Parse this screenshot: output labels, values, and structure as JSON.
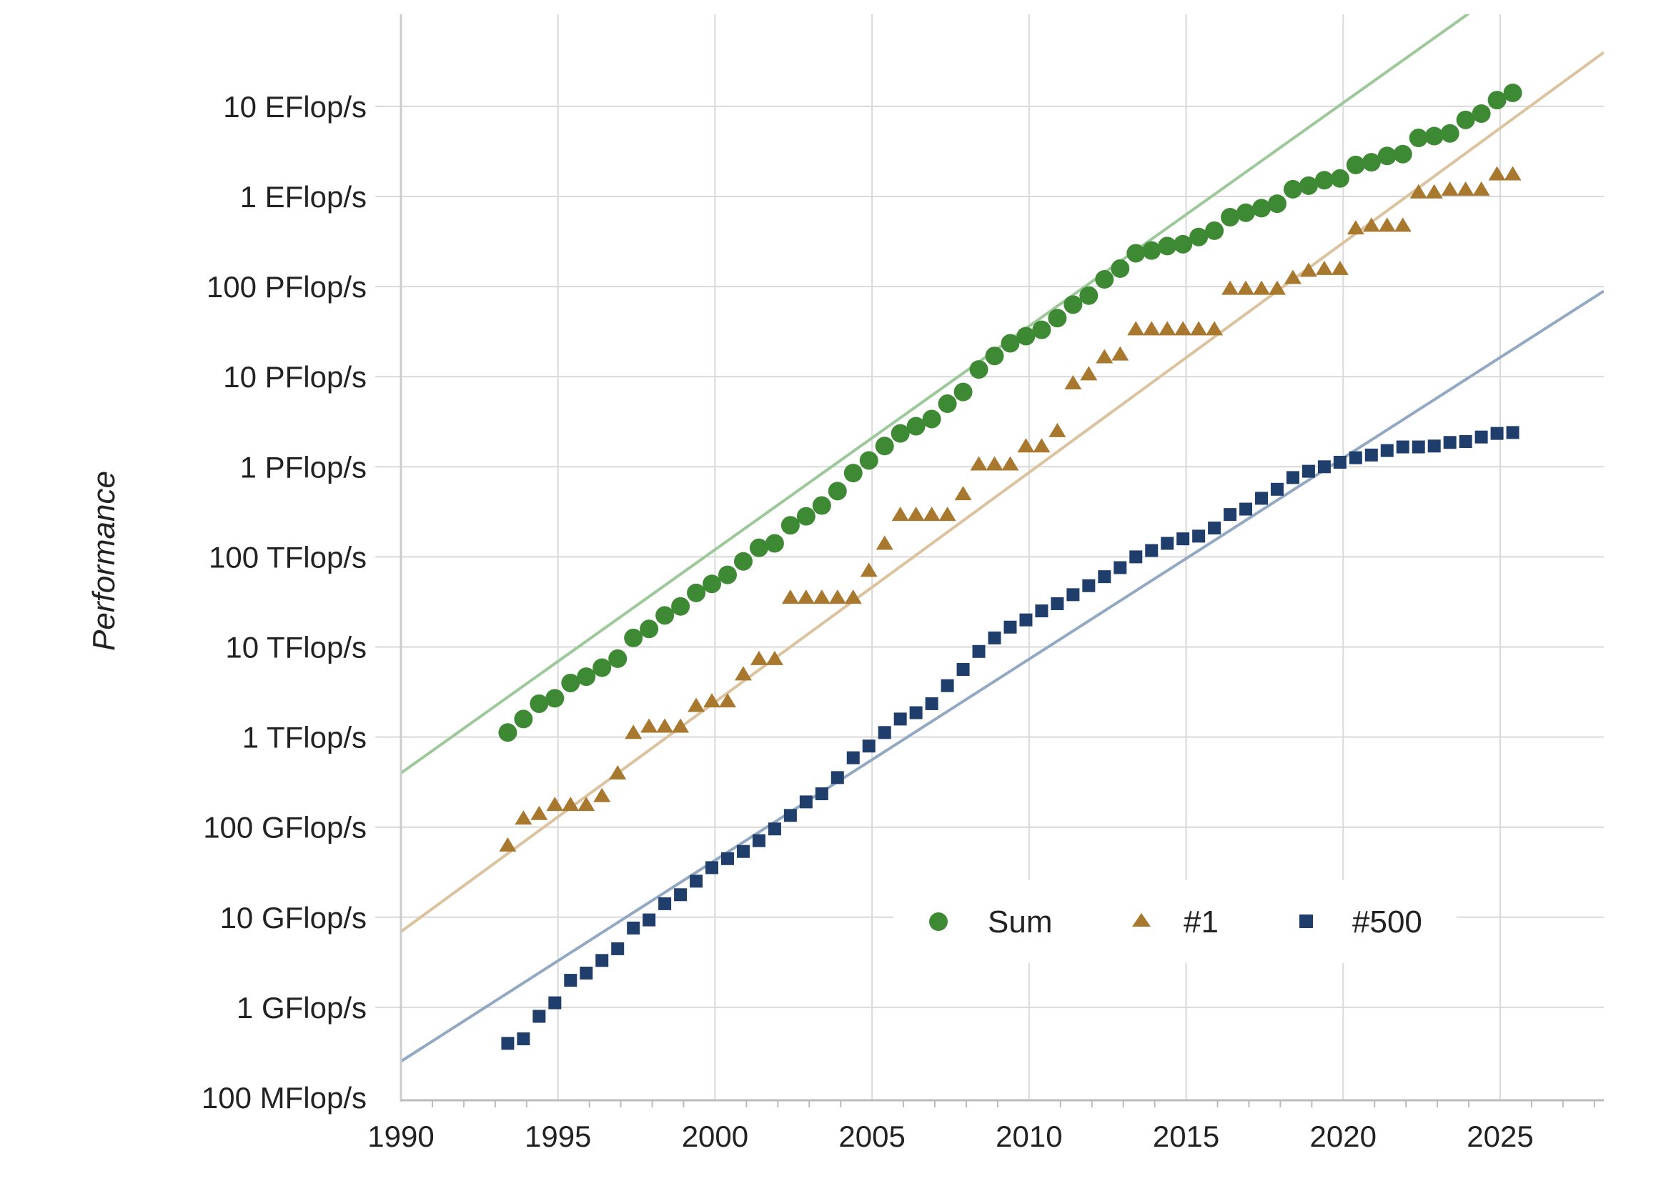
{
  "chart_data": {
    "type": "scatter",
    "title": "",
    "xlabel": "",
    "ylabel": "Performance",
    "y_scale": "log",
    "x_range": [
      1990,
      2028.3
    ],
    "y_range_exponent": [
      -1,
      10.6
    ],
    "grid": true,
    "legend_position": "lower-right",
    "x_ticks": [
      {
        "value": 1990,
        "label": "1990"
      },
      {
        "value": 1995,
        "label": "1995"
      },
      {
        "value": 2000,
        "label": "2000"
      },
      {
        "value": 2005,
        "label": "2005"
      },
      {
        "value": 2010,
        "label": "2010"
      },
      {
        "value": 2015,
        "label": "2015"
      },
      {
        "value": 2020,
        "label": "2020"
      },
      {
        "value": 2025,
        "label": "2025"
      }
    ],
    "y_ticks": [
      {
        "exp": -1,
        "label": "100 MFlop/s"
      },
      {
        "exp": 0,
        "label": "1 GFlop/s"
      },
      {
        "exp": 1,
        "label": "10 GFlop/s"
      },
      {
        "exp": 2,
        "label": "100 GFlop/s"
      },
      {
        "exp": 3,
        "label": "1 TFlop/s"
      },
      {
        "exp": 4,
        "label": "10 TFlop/s"
      },
      {
        "exp": 5,
        "label": "100 TFlop/s"
      },
      {
        "exp": 6,
        "label": "1 PFlop/s"
      },
      {
        "exp": 7,
        "label": "10 PFlop/s"
      },
      {
        "exp": 8,
        "label": "100 PFlop/s"
      },
      {
        "exp": 9,
        "label": "1 EFlop/s"
      },
      {
        "exp": 10,
        "label": "10 EFlop/s"
      }
    ],
    "series": [
      {
        "name": "Sum",
        "marker": "circle",
        "color": "#3e8a34",
        "trend_color": "#9dc99a",
        "trend_line": [
          [
            1990,
            2.6
          ],
          [
            2027.1,
            11.8
          ]
        ],
        "points": [
          [
            1993.4,
            3.05
          ],
          [
            1993.9,
            3.2
          ],
          [
            1994.4,
            3.37
          ],
          [
            1994.9,
            3.43
          ],
          [
            1995.4,
            3.6
          ],
          [
            1995.9,
            3.67
          ],
          [
            1996.4,
            3.77
          ],
          [
            1996.9,
            3.87
          ],
          [
            1997.4,
            4.1
          ],
          [
            1997.9,
            4.2
          ],
          [
            1998.4,
            4.35
          ],
          [
            1998.9,
            4.45
          ],
          [
            1999.4,
            4.6
          ],
          [
            1999.9,
            4.7
          ],
          [
            2000.4,
            4.8
          ],
          [
            2000.9,
            4.95
          ],
          [
            2001.4,
            5.1
          ],
          [
            2001.9,
            5.15
          ],
          [
            2002.4,
            5.35
          ],
          [
            2002.9,
            5.45
          ],
          [
            2003.4,
            5.57
          ],
          [
            2003.9,
            5.73
          ],
          [
            2004.4,
            5.93
          ],
          [
            2004.9,
            6.07
          ],
          [
            2005.4,
            6.23
          ],
          [
            2005.9,
            6.37
          ],
          [
            2006.4,
            6.45
          ],
          [
            2006.9,
            6.53
          ],
          [
            2007.4,
            6.7
          ],
          [
            2007.9,
            6.83
          ],
          [
            2008.4,
            7.08
          ],
          [
            2008.9,
            7.23
          ],
          [
            2009.4,
            7.37
          ],
          [
            2009.9,
            7.45
          ],
          [
            2010.4,
            7.52
          ],
          [
            2010.9,
            7.65
          ],
          [
            2011.4,
            7.8
          ],
          [
            2011.9,
            7.9
          ],
          [
            2012.4,
            8.08
          ],
          [
            2012.9,
            8.2
          ],
          [
            2013.4,
            8.37
          ],
          [
            2013.9,
            8.4
          ],
          [
            2014.4,
            8.45
          ],
          [
            2014.9,
            8.47
          ],
          [
            2015.4,
            8.55
          ],
          [
            2015.9,
            8.62
          ],
          [
            2016.4,
            8.77
          ],
          [
            2016.9,
            8.82
          ],
          [
            2017.4,
            8.87
          ],
          [
            2017.9,
            8.92
          ],
          [
            2018.4,
            9.08
          ],
          [
            2018.9,
            9.12
          ],
          [
            2019.4,
            9.18
          ],
          [
            2019.9,
            9.2
          ],
          [
            2020.4,
            9.35
          ],
          [
            2020.9,
            9.38
          ],
          [
            2021.4,
            9.45
          ],
          [
            2021.9,
            9.47
          ],
          [
            2022.4,
            9.65
          ],
          [
            2022.9,
            9.67
          ],
          [
            2023.4,
            9.7
          ],
          [
            2023.9,
            9.85
          ],
          [
            2024.4,
            9.92
          ],
          [
            2024.9,
            10.07
          ],
          [
            2025.4,
            10.15
          ]
        ]
      },
      {
        "name": "#1",
        "marker": "triangle",
        "color": "#a8782f",
        "trend_color": "#dcc3a0",
        "trend_line": [
          [
            1990,
            0.84
          ],
          [
            2028.3,
            10.6
          ]
        ],
        "points": [
          [
            1993.4,
            1.8
          ],
          [
            1993.9,
            2.1
          ],
          [
            1994.4,
            2.15
          ],
          [
            1994.9,
            2.25
          ],
          [
            1995.4,
            2.25
          ],
          [
            1995.9,
            2.25
          ],
          [
            1996.4,
            2.35
          ],
          [
            1996.9,
            2.6
          ],
          [
            1997.4,
            3.05
          ],
          [
            1997.9,
            3.12
          ],
          [
            1998.4,
            3.12
          ],
          [
            1998.9,
            3.12
          ],
          [
            1999.4,
            3.35
          ],
          [
            1999.9,
            3.4
          ],
          [
            2000.4,
            3.4
          ],
          [
            2000.9,
            3.7
          ],
          [
            2001.4,
            3.87
          ],
          [
            2001.9,
            3.87
          ],
          [
            2002.4,
            4.55
          ],
          [
            2002.9,
            4.55
          ],
          [
            2003.4,
            4.55
          ],
          [
            2003.9,
            4.55
          ],
          [
            2004.4,
            4.55
          ],
          [
            2004.9,
            4.85
          ],
          [
            2005.4,
            5.15
          ],
          [
            2005.9,
            5.47
          ],
          [
            2006.4,
            5.47
          ],
          [
            2006.9,
            5.47
          ],
          [
            2007.4,
            5.47
          ],
          [
            2007.9,
            5.7
          ],
          [
            2008.4,
            6.03
          ],
          [
            2008.9,
            6.03
          ],
          [
            2009.4,
            6.03
          ],
          [
            2009.9,
            6.23
          ],
          [
            2010.4,
            6.23
          ],
          [
            2010.9,
            6.4
          ],
          [
            2011.4,
            6.93
          ],
          [
            2011.9,
            7.03
          ],
          [
            2012.4,
            7.22
          ],
          [
            2012.9,
            7.25
          ],
          [
            2013.4,
            7.53
          ],
          [
            2013.9,
            7.53
          ],
          [
            2014.4,
            7.53
          ],
          [
            2014.9,
            7.53
          ],
          [
            2015.4,
            7.53
          ],
          [
            2015.9,
            7.53
          ],
          [
            2016.4,
            7.98
          ],
          [
            2016.9,
            7.98
          ],
          [
            2017.4,
            7.98
          ],
          [
            2017.9,
            7.98
          ],
          [
            2018.4,
            8.1
          ],
          [
            2018.9,
            8.18
          ],
          [
            2019.4,
            8.2
          ],
          [
            2019.9,
            8.2
          ],
          [
            2020.4,
            8.65
          ],
          [
            2020.9,
            8.68
          ],
          [
            2021.4,
            8.68
          ],
          [
            2021.9,
            8.68
          ],
          [
            2022.4,
            9.05
          ],
          [
            2022.9,
            9.05
          ],
          [
            2023.4,
            9.08
          ],
          [
            2023.9,
            9.08
          ],
          [
            2024.4,
            9.08
          ],
          [
            2024.9,
            9.25
          ],
          [
            2025.4,
            9.25
          ]
        ]
      },
      {
        "name": "#500",
        "marker": "square",
        "color": "#1f3e6c",
        "trend_color": "#93a9c3",
        "trend_line": [
          [
            1990,
            -0.6
          ],
          [
            2028.3,
            7.95
          ]
        ],
        "points": [
          [
            1993.4,
            -0.4
          ],
          [
            1993.9,
            -0.35
          ],
          [
            1994.4,
            -0.1
          ],
          [
            1994.9,
            0.05
          ],
          [
            1995.4,
            0.3
          ],
          [
            1995.9,
            0.38
          ],
          [
            1996.4,
            0.52
          ],
          [
            1996.9,
            0.65
          ],
          [
            1997.4,
            0.88
          ],
          [
            1997.9,
            0.97
          ],
          [
            1998.4,
            1.15
          ],
          [
            1998.9,
            1.25
          ],
          [
            1999.4,
            1.4
          ],
          [
            1999.9,
            1.55
          ],
          [
            2000.4,
            1.65
          ],
          [
            2000.9,
            1.73
          ],
          [
            2001.4,
            1.85
          ],
          [
            2001.9,
            1.98
          ],
          [
            2002.4,
            2.13
          ],
          [
            2002.9,
            2.28
          ],
          [
            2003.4,
            2.37
          ],
          [
            2003.9,
            2.55
          ],
          [
            2004.4,
            2.77
          ],
          [
            2004.9,
            2.9
          ],
          [
            2005.4,
            3.05
          ],
          [
            2005.9,
            3.2
          ],
          [
            2006.4,
            3.27
          ],
          [
            2006.9,
            3.37
          ],
          [
            2007.4,
            3.57
          ],
          [
            2007.9,
            3.75
          ],
          [
            2008.4,
            3.95
          ],
          [
            2008.9,
            4.1
          ],
          [
            2009.4,
            4.22
          ],
          [
            2009.9,
            4.3
          ],
          [
            2010.4,
            4.4
          ],
          [
            2010.9,
            4.48
          ],
          [
            2011.4,
            4.58
          ],
          [
            2011.9,
            4.68
          ],
          [
            2012.4,
            4.78
          ],
          [
            2012.9,
            4.88
          ],
          [
            2013.4,
            5
          ],
          [
            2013.9,
            5.07
          ],
          [
            2014.4,
            5.15
          ],
          [
            2014.9,
            5.2
          ],
          [
            2015.4,
            5.23
          ],
          [
            2015.9,
            5.32
          ],
          [
            2016.4,
            5.47
          ],
          [
            2016.9,
            5.53
          ],
          [
            2017.4,
            5.65
          ],
          [
            2017.9,
            5.75
          ],
          [
            2018.4,
            5.88
          ],
          [
            2018.9,
            5.95
          ],
          [
            2019.4,
            6
          ],
          [
            2019.9,
            6.05
          ],
          [
            2020.4,
            6.1
          ],
          [
            2020.9,
            6.13
          ],
          [
            2021.4,
            6.18
          ],
          [
            2021.9,
            6.22
          ],
          [
            2022.4,
            6.22
          ],
          [
            2022.9,
            6.23
          ],
          [
            2023.4,
            6.27
          ],
          [
            2023.9,
            6.28
          ],
          [
            2024.4,
            6.33
          ],
          [
            2024.9,
            6.37
          ],
          [
            2025.4,
            6.38
          ]
        ]
      }
    ]
  }
}
